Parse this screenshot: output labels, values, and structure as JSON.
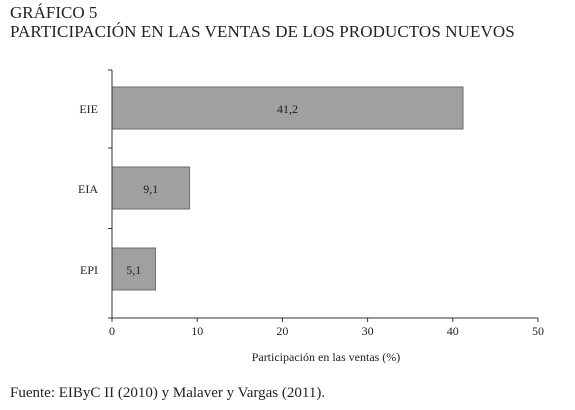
{
  "figure": {
    "label": "GRÁFICO 5",
    "title": "PARTICIPACIÓN EN LAS VENTAS DE LOS PRODUCTOS NUEVOS"
  },
  "chart_data": {
    "type": "bar",
    "orientation": "horizontal",
    "categories": [
      "EIE",
      "EIA",
      "EPI"
    ],
    "values": [
      41.2,
      9.1,
      5.1
    ],
    "data_labels": [
      "41,2",
      "9,1",
      "5,1"
    ],
    "xlabel": "Participación en las ventas (%)",
    "ylabel": "",
    "xlim": [
      0,
      50
    ],
    "xticks": [
      0,
      10,
      20,
      30,
      40,
      50
    ],
    "grid": false,
    "colors": {
      "bar": "#a0a0a2",
      "bar_border": "#6e6e70",
      "axis": "#333333"
    }
  },
  "source": "Fuente: EIByC II (2010) y Malaver y Vargas (2011)."
}
